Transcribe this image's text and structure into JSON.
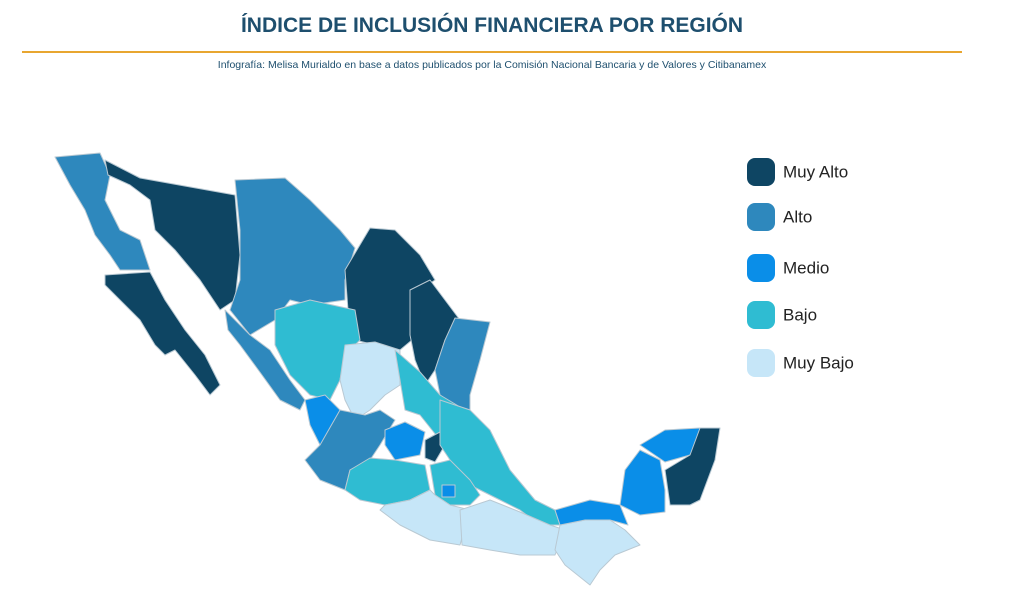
{
  "header": {
    "title": "ÍNDICE DE INCLUSIÓN FINANCIERA POR REGIÓN",
    "subtitle": "Infografía: Melisa Murialdo en base a datos publicados por la Comisión Nacional Bancaria y de Valores y Citibanamex"
  },
  "legend": [
    {
      "label": "Muy Alto",
      "color": "#0e4563"
    },
    {
      "label": "Alto",
      "color": "#2e88bd"
    },
    {
      "label": "Medio",
      "color": "#0a8ee8"
    },
    {
      "label": "Bajo",
      "color": "#2fbcd2"
    },
    {
      "label": "Muy Bajo",
      "color": "#c6e6f8"
    }
  ]
}
